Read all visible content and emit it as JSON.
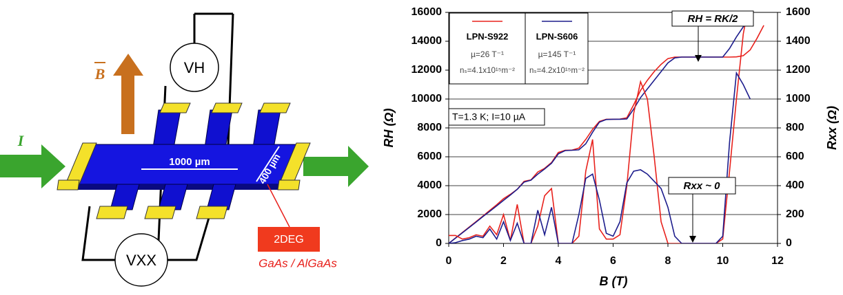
{
  "diagram": {
    "hall_voltage": "VH",
    "field": "B",
    "current": "I",
    "length": "1000 µm",
    "width": "400 µm",
    "layer": "2DEG",
    "material": "GaAs / AlGaAs",
    "long_voltage": "VXX"
  },
  "chart_data": {
    "type": "line",
    "xlabel": "B (T)",
    "ylabel": "RH (Ω)",
    "y2label": "Rxx (Ω)",
    "xlim": [
      0,
      12
    ],
    "xticks": [
      0,
      2,
      4,
      6,
      8,
      10,
      12
    ],
    "ylim": [
      0,
      16000
    ],
    "yticks": [
      0,
      2000,
      4000,
      6000,
      8000,
      10000,
      12000,
      14000,
      16000
    ],
    "y2lim": [
      0,
      1600
    ],
    "y2ticks": [
      0,
      200,
      400,
      600,
      800,
      1000,
      1200,
      1400,
      1600
    ],
    "grid": true,
    "legend": "top-left",
    "conditions": "T=1.3 K; I=10 µA",
    "annotations": [
      "RH = RK/2",
      "Rxx ~ 0"
    ],
    "x": [
      0,
      0.25,
      0.5,
      0.75,
      1,
      1.25,
      1.5,
      1.75,
      2,
      2.25,
      2.5,
      2.75,
      3,
      3.25,
      3.5,
      3.75,
      4,
      4.25,
      4.5,
      4.75,
      5,
      5.25,
      5.5,
      5.75,
      6,
      6.25,
      6.5,
      6.75,
      7,
      7.25,
      7.5,
      7.75,
      8,
      8.25,
      8.5,
      8.75,
      9,
      9.25,
      9.5,
      9.75,
      10,
      10.25,
      10.5,
      10.75,
      11,
      11.25,
      11.5
    ],
    "series": [
      {
        "name": "LPN-S922",
        "mobility": "µ=26 T⁻¹",
        "density": "nₛ=4.1x10¹⁵m⁻²",
        "color": "#e8211c",
        "values": [
          0,
          380,
          760,
          1140,
          1520,
          1900,
          2290,
          2680,
          3100,
          3400,
          3750,
          4300,
          4400,
          4950,
          5200,
          5600,
          6300,
          6450,
          6460,
          6600,
          7200,
          7900,
          8450,
          8600,
          8600,
          8610,
          8700,
          9600,
          10600,
          11300,
          11900,
          12400,
          12800,
          12900,
          12906,
          12906,
          12906,
          12906,
          12906,
          12906,
          12906,
          12906,
          12920,
          13000,
          13400,
          14200,
          15100
        ]
      },
      {
        "name": "LPN-S606",
        "mobility": "µ=145 T⁻¹",
        "density": "nₛ=4.2x10¹⁵m⁻²",
        "color": "#1c1c8c",
        "values": [
          0,
          370,
          740,
          1110,
          1480,
          1860,
          2230,
          2600,
          2980,
          3350,
          3750,
          4250,
          4380,
          4800,
          5150,
          5550,
          6200,
          6430,
          6450,
          6480,
          6900,
          7700,
          8400,
          8580,
          8600,
          8600,
          8620,
          9300,
          10100,
          10700,
          11300,
          11900,
          12500,
          12850,
          12906,
          12906,
          12906,
          12906,
          12906,
          12906,
          12906,
          13500,
          14300,
          15000,
          15400,
          null,
          null
        ]
      },
      {
        "name": "LPN-S922",
        "color": "#e8211c",
        "axis": "y2",
        "values": [
          55,
          55,
          30,
          40,
          60,
          50,
          120,
          60,
          200,
          20,
          270,
          0,
          0,
          120,
          330,
          380,
          0,
          0,
          0,
          50,
          500,
          720,
          100,
          30,
          30,
          60,
          400,
          900,
          1120,
          1000,
          600,
          150,
          0,
          0,
          0,
          0,
          0,
          0,
          0,
          0,
          30,
          500,
          1000,
          1450,
          1700,
          null,
          null
        ]
      },
      {
        "name": "LPN-S606",
        "color": "#1c1c8c",
        "axis": "y2",
        "values": [
          0,
          5,
          20,
          30,
          50,
          40,
          100,
          30,
          150,
          20,
          140,
          0,
          0,
          230,
          60,
          250,
          0,
          0,
          0,
          200,
          450,
          480,
          300,
          70,
          50,
          150,
          420,
          500,
          510,
          480,
          430,
          380,
          250,
          50,
          0,
          0,
          0,
          0,
          0,
          0,
          50,
          700,
          1180,
          1100,
          1000,
          null,
          null
        ]
      }
    ]
  }
}
